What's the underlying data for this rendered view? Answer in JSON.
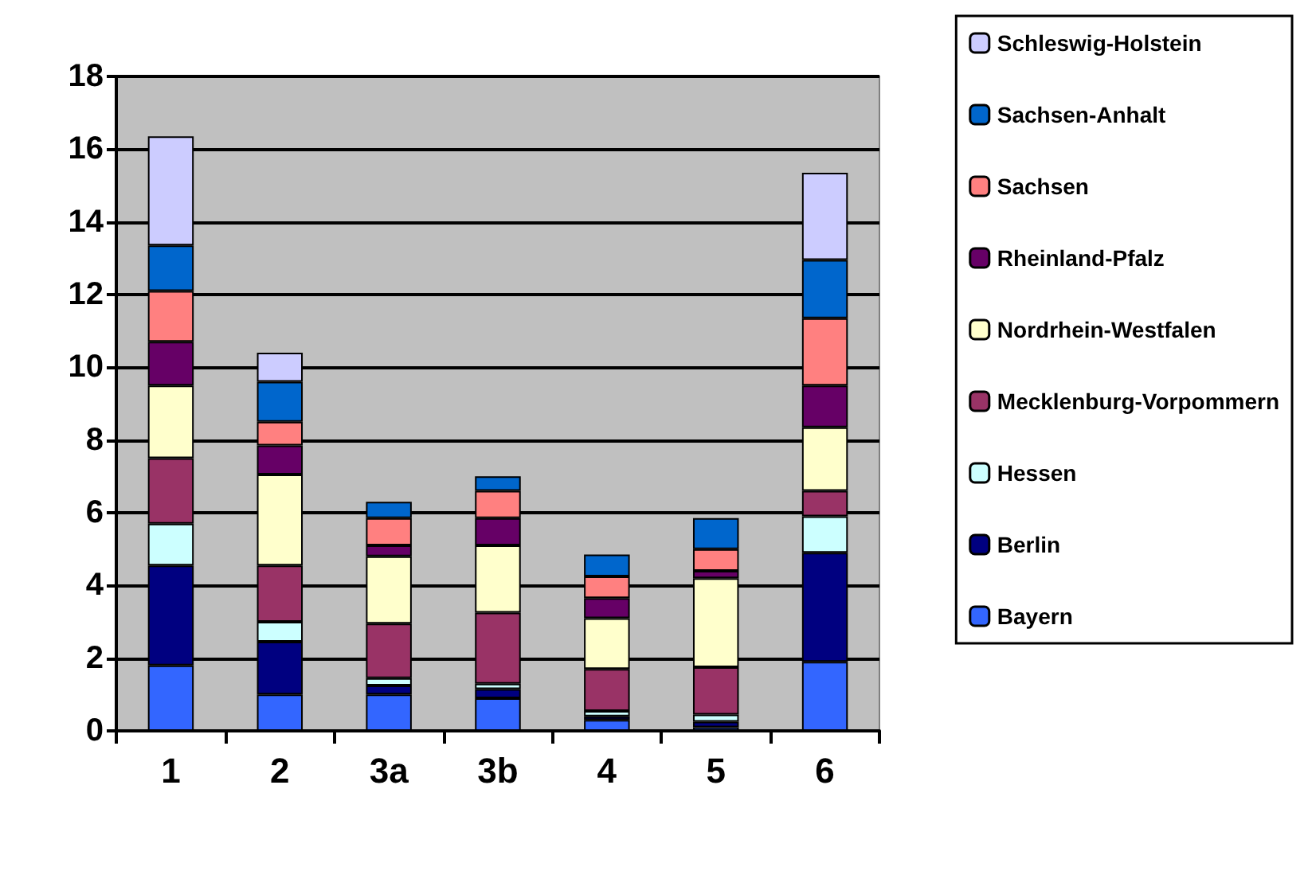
{
  "chart_data": {
    "type": "bar",
    "stacked": true,
    "categories": [
      "1",
      "2",
      "3a",
      "3b",
      "4",
      "5",
      "6"
    ],
    "series": [
      {
        "name": "Bayern",
        "color": "#3366ff",
        "values": [
          1.8,
          1.0,
          1.0,
          0.9,
          0.3,
          0.1,
          1.9
        ]
      },
      {
        "name": "Berlin",
        "color": "#000080",
        "values": [
          2.75,
          1.45,
          0.25,
          0.25,
          0.1,
          0.15,
          3.0
        ]
      },
      {
        "name": "Hessen",
        "color": "#ccffff",
        "values": [
          1.15,
          0.55,
          0.2,
          0.15,
          0.15,
          0.2,
          1.0
        ]
      },
      {
        "name": "Mecklenburg-Vorpommern",
        "color": "#993366",
        "values": [
          1.8,
          1.55,
          1.5,
          1.95,
          1.15,
          1.3,
          0.7
        ]
      },
      {
        "name": "Nordrhein-Westfalen",
        "color": "#ffffcc",
        "values": [
          2.0,
          2.5,
          1.85,
          1.85,
          1.4,
          2.45,
          1.75
        ]
      },
      {
        "name": "Rheinland-Pfalz",
        "color": "#660066",
        "values": [
          1.2,
          0.8,
          0.3,
          0.75,
          0.55,
          0.2,
          1.15
        ]
      },
      {
        "name": "Sachsen",
        "color": "#ff8080",
        "values": [
          1.4,
          0.65,
          0.75,
          0.75,
          0.6,
          0.6,
          1.85
        ]
      },
      {
        "name": "Sachsen-Anhalt",
        "color": "#0066cc",
        "values": [
          1.25,
          1.1,
          0.45,
          0.4,
          0.6,
          0.85,
          1.6
        ]
      },
      {
        "name": "Schleswig-Holstein",
        "color": "#ccccff",
        "values": [
          3.0,
          0.8,
          null,
          null,
          null,
          null,
          2.4
        ]
      }
    ],
    "ylim": [
      0,
      18
    ],
    "yticks": [
      0,
      2,
      4,
      6,
      8,
      10,
      12,
      14,
      16,
      18
    ],
    "grid": "y",
    "legend": "right"
  }
}
